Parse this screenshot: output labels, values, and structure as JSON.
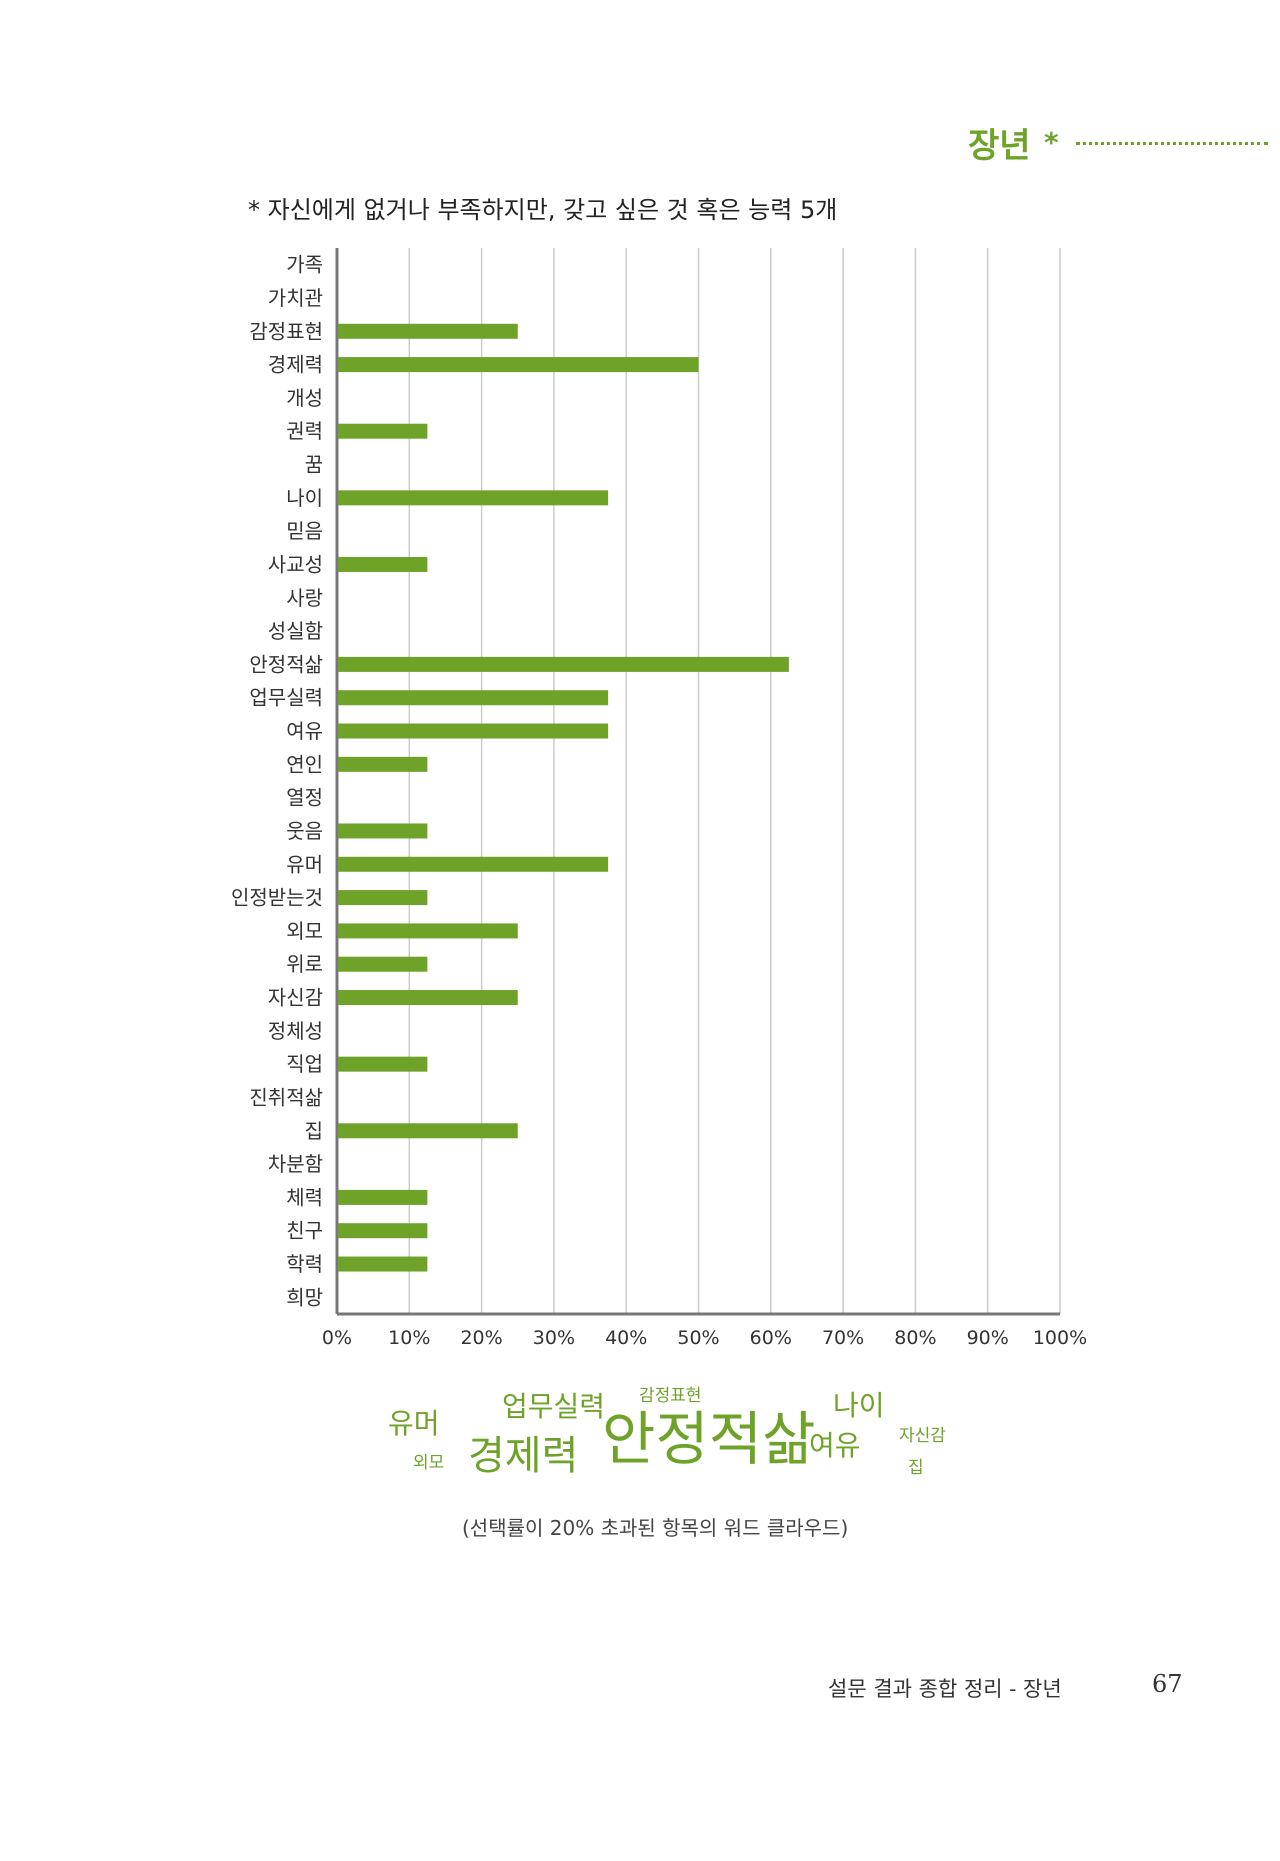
{
  "header": {
    "section_title": "장년",
    "star": "*"
  },
  "question": "* 자신에게 없거나 부족하지만, 갖고 싶은 것 혹은 능력 5개",
  "colors": {
    "accent": "#6ea228",
    "bar": "#6ea228",
    "grid": "#cccccc",
    "axis": "#777777"
  },
  "chart_data": {
    "type": "bar",
    "orientation": "horizontal",
    "categories": [
      "가족",
      "가치관",
      "감정표현",
      "경제력",
      "개성",
      "권력",
      "꿈",
      "나이",
      "믿음",
      "사교성",
      "사랑",
      "성실함",
      "안정적삶",
      "업무실력",
      "여유",
      "연인",
      "열정",
      "웃음",
      "유머",
      "인정받는것",
      "외모",
      "위로",
      "자신감",
      "정체성",
      "직업",
      "진취적삶",
      "집",
      "차분함",
      "체력",
      "친구",
      "학력",
      "희망"
    ],
    "values": [
      0,
      0,
      25,
      50,
      0,
      12.5,
      0,
      37.5,
      0,
      12.5,
      0,
      0,
      62.5,
      37.5,
      37.5,
      12.5,
      0,
      12.5,
      37.5,
      12.5,
      25,
      12.5,
      25,
      0,
      12.5,
      0,
      25,
      0,
      12.5,
      12.5,
      12.5,
      0
    ],
    "xlim": [
      0,
      100
    ],
    "tick_labels": [
      "0%",
      "10%",
      "20%",
      "30%",
      "40%",
      "50%",
      "60%",
      "70%",
      "80%",
      "90%",
      "100%"
    ],
    "grid": true
  },
  "word_cloud": [
    {
      "text": "유머",
      "weight": 37.5
    },
    {
      "text": "외모",
      "weight": 25
    },
    {
      "text": "업무실력",
      "weight": 37.5
    },
    {
      "text": "감정표현",
      "weight": 25
    },
    {
      "text": "경제력",
      "weight": 50
    },
    {
      "text": "안정적삶",
      "weight": 62.5
    },
    {
      "text": "나이",
      "weight": 37.5
    },
    {
      "text": "여유",
      "weight": 37.5
    },
    {
      "text": "자신감",
      "weight": 25
    },
    {
      "text": "집",
      "weight": 25
    }
  ],
  "caption": "(선택률이 20% 초과된 항목의 워드 클라우드)",
  "footer": {
    "text": "설문 결과 종합 정리 - 장년",
    "page": "67"
  }
}
